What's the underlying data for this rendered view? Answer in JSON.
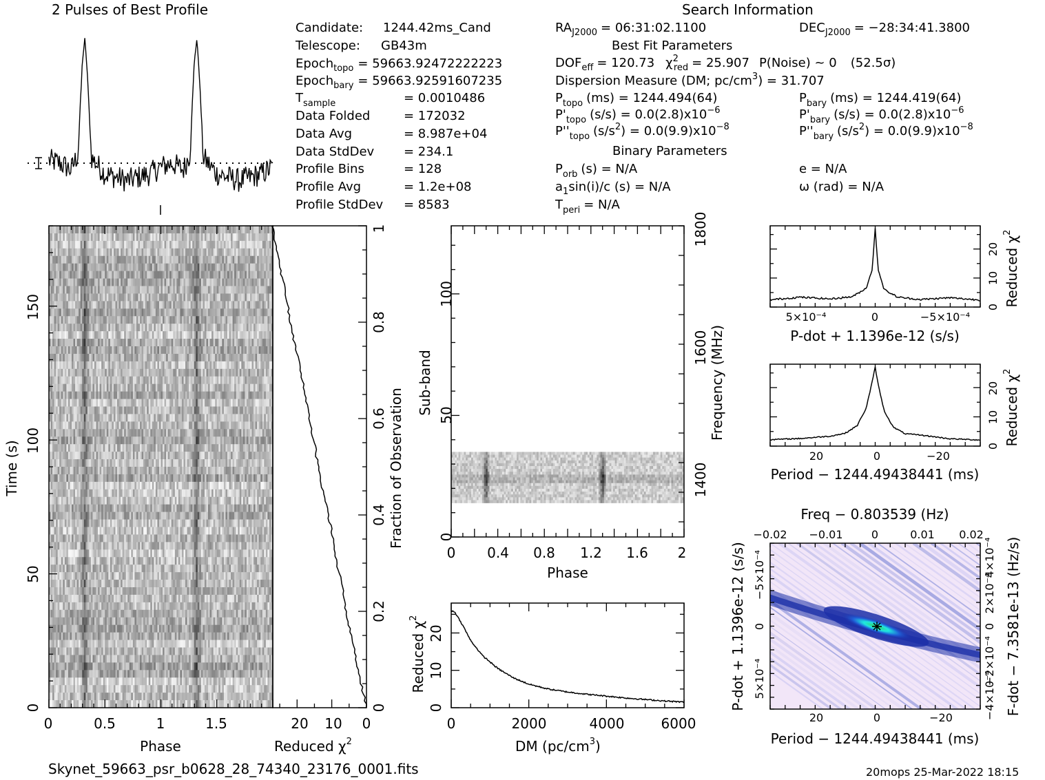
{
  "header": {
    "profile_title": "2 Pulses of Best Profile",
    "search_title": "Search Information",
    "filename": "Skynet_59663_psr_b0628_28_74340_23176_0001.fits",
    "footer_right": "20mops 25-Mar-2022 18:15"
  },
  "info_left": [
    {
      "label": "Candidate:",
      "sub": "",
      "value": "1244.42ms_Cand"
    },
    {
      "label": "Telescope:",
      "sub": "",
      "value": "GB43m"
    },
    {
      "label": "Epoch",
      "sub": "topo",
      "value": "= 59663.92472222223"
    },
    {
      "label": "Epoch",
      "sub": "bary",
      "value": "= 59663.92591607235"
    },
    {
      "label": "T",
      "sub": "sample",
      "value": "=  0.0010486"
    },
    {
      "label": "Data Folded",
      "sub": "",
      "value": "=  172032"
    },
    {
      "label": "Data Avg",
      "sub": "",
      "value": "=  8.987e+04"
    },
    {
      "label": "Data StdDev",
      "sub": "",
      "value": "=  234.1"
    },
    {
      "label": "Profile Bins",
      "sub": "",
      "value": "=  128"
    },
    {
      "label": "Profile Avg",
      "sub": "",
      "value": "=  1.2e+08"
    },
    {
      "label": "Profile StdDev",
      "sub": "",
      "value": "=  8583"
    }
  ],
  "info_mid": {
    "ra": "RA",
    "ra_sub": "J2000",
    "ra_val": "= 06:31:02.1100",
    "dec": "DEC",
    "dec_sub": "J2000",
    "dec_val": "= −28:34:41.3800",
    "best_fit_title": "Best Fit Parameters",
    "dof": "DOF",
    "dof_sub": "eff",
    "dof_val": "= 120.73",
    "chi": "χ",
    "chi_sup": "2",
    "chi_sub": "red",
    "chi_val": "= 25.907",
    "pnoise": "P(Noise) ~ 0",
    "sigma": "(52.5σ)",
    "dm_line": "Dispersion Measure (DM; pc/cm",
    "dm_sup": "3",
    "dm_val": ") = 31.707",
    "ptopo": "P",
    "ptopo_sub": "topo",
    "ptopo_val": "(ms)  =  1244.494(64)",
    "pbary": "P",
    "pbary_sub": "bary",
    "pbary_val": "(ms)  =  1244.419(64)",
    "pdtopo": "P'",
    "pdtopo_sub": "topo",
    "pdtopo_val": "(s/s) = 0.0(2.8)x10",
    "pdtopo_exp": "−6",
    "pdbary": "P'",
    "pdbary_sub": "bary",
    "pdbary_val": "(s/s) = 0.0(2.8)x10",
    "pdbary_exp": "−6",
    "pddtopo": "P''",
    "pddtopo_sub": "topo",
    "pddtopo_val": "(s/s",
    "pddtopo_sup": "2",
    "pddtopo_val2": ") = 0.0(9.9)x10",
    "pddtopo_exp": "−8",
    "pddbary": "P''",
    "pddbary_sub": "bary",
    "pddbary_val": "(s/s",
    "pddbary_sup": "2",
    "pddbary_val2": ") = 0.0(9.9)x10",
    "pddbary_exp": "−8",
    "binary_title": "Binary Parameters",
    "porb": "P",
    "porb_sub": "orb",
    "porb_val": "(s) = N/A",
    "e_val": "e = N/A",
    "a1": "a",
    "a1_sub": "1",
    "a1_val": "sin(i)/c (s) = N/A",
    "omega_val": "ω (rad) = N/A",
    "tperi": "T",
    "tperi_sub": "peri",
    "tperi_val": "= N/A"
  },
  "colors": {
    "ink": "#000000",
    "grey_dark": "#303030",
    "grey_mid": "#8c8c8c",
    "grey_light": "#d8d8d8",
    "blue_dark": "#1c2fa8",
    "blue_light": "#b8b8f0",
    "cyan": "#20e8e0",
    "green": "#30d060",
    "lavender": "#f2e6f8"
  },
  "chart_data": [
    {
      "type": "line",
      "id": "profile",
      "title": "2 Pulses of Best Profile",
      "x": [
        0,
        0.1,
        0.2,
        0.26,
        0.3,
        0.32,
        0.34,
        0.38,
        0.5,
        0.7,
        0.9,
        1.0,
        1.1,
        1.2,
        1.26,
        1.3,
        1.32,
        1.34,
        1.38,
        1.5,
        1.7,
        1.9,
        2.0
      ],
      "values": [
        0.1,
        0.08,
        0.03,
        0.15,
        0.85,
        1.0,
        0.8,
        0.12,
        0.0,
        -0.05,
        0.0,
        0.05,
        0.08,
        0.03,
        0.15,
        0.85,
        1.0,
        0.8,
        0.12,
        0.0,
        -0.05,
        0.0,
        0.05
      ],
      "peaks_phase": [
        0.32,
        1.32
      ],
      "xlim": [
        0,
        2
      ]
    },
    {
      "type": "heatmap",
      "id": "time-phase",
      "xlabel": "Phase",
      "ylabel": "Time (s)",
      "xlim": [
        0,
        2
      ],
      "ylim": [
        0,
        180
      ],
      "xticks": [
        "0",
        "0.5",
        "1",
        "1.5"
      ],
      "yticks": [
        "0",
        "50",
        "100",
        "150"
      ],
      "pulse_phase": [
        0.32,
        1.32
      ]
    },
    {
      "type": "line",
      "id": "time-chi2",
      "xlabel": "Reduced χ",
      "xlabel_sup": "2",
      "ylabel": "Fraction of Observation",
      "xticks": [
        "20",
        "10",
        "0"
      ],
      "yticks": [
        "0",
        "0.2",
        "0.4",
        "0.6",
        "0.8",
        "1"
      ],
      "xlim": [
        27,
        0
      ],
      "ylim": [
        0,
        1
      ],
      "fraction": [
        0,
        0.05,
        0.1,
        0.15,
        0.2,
        0.25,
        0.3,
        0.35,
        0.4,
        0.45,
        0.5,
        0.55,
        0.6,
        0.65,
        0.7,
        0.75,
        0.8,
        0.85,
        0.9,
        0.95,
        1.0
      ],
      "values": [
        0,
        1.5,
        3,
        4.5,
        6,
        7,
        8.5,
        9.5,
        11,
        12.5,
        14,
        15,
        16.5,
        17.5,
        19,
        20.5,
        22,
        23,
        24.5,
        26,
        27
      ]
    },
    {
      "type": "heatmap",
      "id": "subband-phase",
      "xlabel": "Phase",
      "ylabel": "Sub-band",
      "ylabel_right": "Frequency (MHz)",
      "xlim": [
        0,
        2
      ],
      "ylim": [
        0,
        128
      ],
      "xticks": [
        "0",
        "0.4",
        "0.8",
        "1.2",
        "1.6",
        "2"
      ],
      "yticks": [
        "0",
        "50",
        "100"
      ],
      "freq_ticks": [
        "1400",
        "1600",
        "1800"
      ],
      "band_subbands": [
        14,
        35
      ],
      "pulse_phase": [
        0.3,
        1.3
      ]
    },
    {
      "type": "line",
      "id": "dm-chi2",
      "xlabel": "DM (pc/cm",
      "xlabel_sup": "3",
      "xlabel_end": ")",
      "ylabel": "Reduced χ",
      "ylabel_sup": "2",
      "xticks": [
        "0",
        "2000",
        "4000",
        "6000"
      ],
      "yticks": [
        "0",
        "10",
        "20"
      ],
      "xlim": [
        0,
        6000
      ],
      "ylim": [
        0,
        28
      ],
      "x": [
        0,
        100,
        300,
        500,
        800,
        1200,
        1600,
        2000,
        2500,
        3000,
        3500,
        4000,
        4500,
        5000,
        5500,
        6000
      ],
      "values": [
        26,
        25.5,
        22,
        18,
        14,
        10.5,
        8,
        6.3,
        5,
        4.2,
        3.6,
        3.1,
        2.6,
        2.2,
        1.8,
        1.5
      ]
    },
    {
      "type": "line",
      "id": "pdot-chi2",
      "xlabel": "P-dot + 1.1396e-12 (s/s)",
      "ylabel": "Reduced χ",
      "ylabel_sup": "2",
      "xticks": [
        "5×10⁻⁴",
        "0",
        "−5×10⁻⁴"
      ],
      "yticks": [
        "0",
        "10",
        "20"
      ],
      "xlim": [
        0.0007,
        -0.0007
      ],
      "ylim": [
        0,
        28
      ],
      "x": [
        0.0007,
        0.0005,
        0.0003,
        0.00015,
        6e-05,
        2e-05,
        0,
        -2e-05,
        -6e-05,
        -0.00015,
        -0.0003,
        -0.0005,
        -0.0007
      ],
      "values": [
        2.5,
        3.4,
        2.8,
        3.6,
        6.5,
        13,
        27,
        13,
        6,
        3.4,
        2.6,
        3.2,
        2.4
      ]
    },
    {
      "type": "line",
      "id": "period-chi2",
      "xlabel": "Period − 1244.49438441 (ms)",
      "ylabel": "Reduced χ",
      "ylabel_sup": "2",
      "xticks": [
        "20",
        "0",
        "−20"
      ],
      "yticks": [
        "0",
        "10",
        "20"
      ],
      "xlim": [
        35,
        -35
      ],
      "ylim": [
        0,
        28
      ],
      "x": [
        35,
        25,
        15,
        10,
        6,
        3,
        1,
        0,
        -1,
        -3,
        -6,
        -10,
        -15,
        -25,
        -35
      ],
      "values": [
        2.2,
        2.6,
        3.4,
        4.4,
        7,
        13,
        22,
        27,
        21,
        12,
        6.5,
        4.2,
        3.8,
        2.5,
        2.1
      ]
    },
    {
      "type": "heatmap",
      "id": "period-pdot",
      "xlabel": "Period − 1244.49438441 (ms)",
      "ylabel": "P-dot + 1.1396e-12 (s/s)",
      "top_label": "Freq − 0.803539 (Hz)",
      "right_label": "F-dot − 7.3581e-13 (Hz/s)",
      "xticks": [
        "20",
        "0",
        "−20"
      ],
      "top_ticks": [
        "−0.02",
        "−0.01",
        "0",
        "0.01",
        "0.02"
      ],
      "yticks": [
        "−5×10⁻⁴",
        "0",
        "5×10⁻⁴"
      ],
      "right_ticks": [
        "4×10⁻⁴",
        "2×10⁻⁴",
        "0",
        "−2×10⁻⁴",
        "−4×10⁻⁴"
      ],
      "xlim": [
        35,
        -35
      ],
      "ylim": [
        -0.0007,
        0.0007
      ],
      "peak": [
        0,
        0
      ]
    }
  ]
}
